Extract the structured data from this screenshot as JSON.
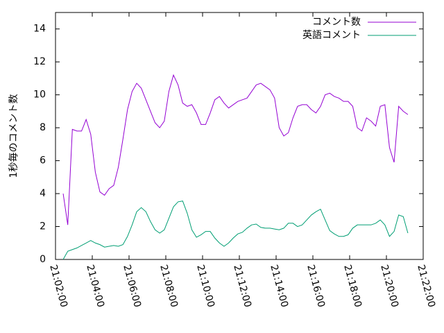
{
  "chart_data": {
    "type": "line",
    "ylabel": "1秒毎のコメント数",
    "legend": "top-right",
    "x": [
      "21:02:25",
      "21:02:40",
      "21:02:55",
      "21:03:10",
      "21:03:25",
      "21:03:40",
      "21:03:55",
      "21:04:10",
      "21:04:25",
      "21:04:40",
      "21:04:55",
      "21:05:10",
      "21:05:25",
      "21:05:40",
      "21:05:55",
      "21:06:10",
      "21:06:25",
      "21:06:40",
      "21:06:55",
      "21:07:10",
      "21:07:25",
      "21:07:40",
      "21:07:55",
      "21:08:10",
      "21:08:25",
      "21:08:40",
      "21:08:55",
      "21:09:10",
      "21:09:25",
      "21:09:40",
      "21:09:55",
      "21:10:10",
      "21:10:25",
      "21:10:40",
      "21:10:55",
      "21:11:10",
      "21:11:25",
      "21:11:40",
      "21:11:55",
      "21:12:10",
      "21:12:25",
      "21:12:40",
      "21:12:55",
      "21:13:10",
      "21:13:25",
      "21:13:40",
      "21:13:55",
      "21:14:10",
      "21:14:25",
      "21:14:40",
      "21:14:55",
      "21:15:10",
      "21:15:25",
      "21:15:40",
      "21:15:55",
      "21:16:10",
      "21:16:25",
      "21:16:40",
      "21:16:55",
      "21:17:10",
      "21:17:25",
      "21:17:40",
      "21:17:55",
      "21:18:10",
      "21:18:25",
      "21:18:40",
      "21:18:55",
      "21:19:10",
      "21:19:25",
      "21:19:40",
      "21:19:55",
      "21:20:10",
      "21:20:25",
      "21:20:40",
      "21:20:55",
      "21:21:10"
    ],
    "series": [
      {
        "name": "コメント数",
        "color": "#9400d3",
        "values": [
          4.0,
          2.1,
          7.9,
          7.8,
          7.8,
          8.5,
          7.6,
          5.3,
          4.1,
          3.9,
          4.3,
          4.5,
          5.6,
          7.3,
          9.1,
          10.2,
          10.7,
          10.4,
          9.7,
          9.0,
          8.3,
          8.0,
          8.4,
          10.2,
          11.2,
          10.6,
          9.5,
          9.3,
          9.4,
          8.9,
          8.2,
          8.2,
          8.9,
          9.7,
          9.9,
          9.5,
          9.2,
          9.4,
          9.6,
          9.7,
          9.8,
          10.2,
          10.6,
          10.7,
          10.5,
          10.3,
          9.8,
          8.0,
          7.5,
          7.7,
          8.6,
          9.3,
          9.4,
          9.4,
          9.1,
          8.9,
          9.3,
          10.0,
          10.1,
          9.9,
          9.8,
          9.6,
          9.6,
          9.3,
          8.0,
          7.8,
          8.6,
          8.4,
          8.1,
          9.3,
          9.4,
          6.8,
          5.9,
          9.3,
          9.0,
          8.8
        ]
      },
      {
        "name": "英語コメント",
        "color": "#009e73",
        "values": [
          0.0,
          0.5,
          0.6,
          0.7,
          0.85,
          1.0,
          1.15,
          1.0,
          0.9,
          0.75,
          0.8,
          0.85,
          0.8,
          0.9,
          1.4,
          2.1,
          2.9,
          3.15,
          2.9,
          2.3,
          1.8,
          1.6,
          1.8,
          2.5,
          3.2,
          3.5,
          3.55,
          2.8,
          1.8,
          1.35,
          1.5,
          1.7,
          1.7,
          1.3,
          1.0,
          0.8,
          1.0,
          1.3,
          1.55,
          1.65,
          1.9,
          2.1,
          2.15,
          1.95,
          1.9,
          1.9,
          1.85,
          1.8,
          1.9,
          2.2,
          2.2,
          2.0,
          2.1,
          2.4,
          2.7,
          2.9,
          3.05,
          2.4,
          1.75,
          1.55,
          1.4,
          1.4,
          1.5,
          1.9,
          2.1,
          2.1,
          2.1,
          2.1,
          2.2,
          2.4,
          2.1,
          1.4,
          1.7,
          2.7,
          2.6,
          1.6
        ]
      }
    ],
    "xlim": [
      "21:02:00",
      "21:22:00"
    ],
    "xticks": [
      "21:02:00",
      "21:04:00",
      "21:06:00",
      "21:08:00",
      "21:10:00",
      "21:12:00",
      "21:14:00",
      "21:16:00",
      "21:18:00",
      "21:20:00",
      "21:22:00"
    ],
    "ylim": [
      0,
      15
    ],
    "yticks": [
      0,
      2,
      4,
      6,
      8,
      10,
      12,
      14
    ]
  }
}
